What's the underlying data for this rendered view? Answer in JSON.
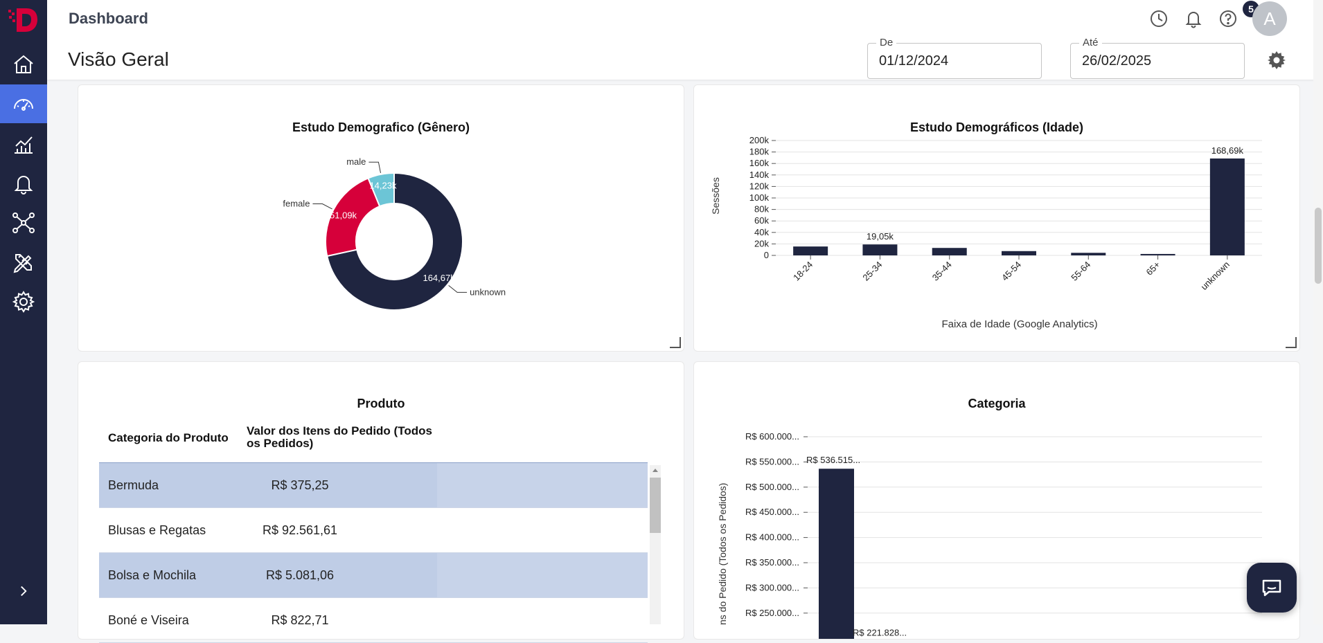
{
  "header": {
    "breadcrumb": "Dashboard",
    "page_title": "Visão Geral",
    "notification_count": "5",
    "avatar_initial": "A"
  },
  "date_range": {
    "from_label": "De",
    "from_value": "01/12/2024",
    "to_label": "Até",
    "to_value": "26/02/2025"
  },
  "colors": {
    "navy": "#1f2540",
    "red": "#d6003a",
    "teal": "#6cc5d6",
    "accent": "#4a6fe3"
  },
  "sidebar": {
    "items": [
      {
        "icon": "home-icon"
      },
      {
        "icon": "dashboard-gauge-icon",
        "active": true
      },
      {
        "icon": "analytics-chart-icon"
      },
      {
        "icon": "bell-icon"
      },
      {
        "icon": "network-icon"
      },
      {
        "icon": "design-tools-icon"
      },
      {
        "icon": "gear-icon"
      }
    ],
    "expand_icon": "chevron-right-icon"
  },
  "chart_data": [
    {
      "type": "pie",
      "title": "Estudo Demografico (Gênero)",
      "categories": [
        "unknown",
        "female",
        "male"
      ],
      "values": [
        164670,
        51090,
        14230
      ],
      "data_labels": [
        "164,67k",
        "51,09k",
        "14,23k"
      ]
    },
    {
      "type": "bar",
      "title": "Estudo Demográficos (Idade)",
      "xlabel": "Faixa de Idade (Google Analytics)",
      "ylabel": "Sessões",
      "categories": [
        "18-24",
        "25-34",
        "35-44",
        "45-54",
        "55-64",
        "65+",
        "unknown"
      ],
      "values": [
        15500,
        19050,
        13000,
        7500,
        4500,
        2500,
        168690
      ],
      "data_labels": [
        {
          "index": 1,
          "text": "19,05k"
        },
        {
          "index": 6,
          "text": "168,69k"
        }
      ],
      "ylim": [
        0,
        200000
      ],
      "yticks": [
        {
          "v": 200000,
          "label": "200k"
        },
        {
          "v": 180000,
          "label": "180k"
        },
        {
          "v": 160000,
          "label": "160k"
        },
        {
          "v": 140000,
          "label": "140k"
        },
        {
          "v": 120000,
          "label": "120k"
        },
        {
          "v": 100000,
          "label": "100k"
        },
        {
          "v": 80000,
          "label": "80k"
        },
        {
          "v": 60000,
          "label": "60k"
        },
        {
          "v": 40000,
          "label": "40k"
        },
        {
          "v": 20000,
          "label": "20k"
        },
        {
          "v": 0,
          "label": "0"
        }
      ]
    },
    {
      "type": "table",
      "title": "Produto",
      "columns": [
        "Categoria do Produto",
        "Valor dos Itens do Pedido (Todos os Pedidos)"
      ],
      "rows": [
        [
          "Bermuda",
          "R$ 375,25"
        ],
        [
          "Blusas e Regatas",
          "R$ 92.561,61"
        ],
        [
          "Bolsa e Mochila",
          "R$ 5.081,06"
        ],
        [
          "Boné e Viseira",
          "R$ 822,71"
        ]
      ]
    },
    {
      "type": "bar",
      "title": "Categoria",
      "ylabel": "ns do Pedido (Todos os Pedidos)",
      "values": [
        536515,
        221828
      ],
      "data_labels": [
        "R$ 536.515...",
        "R$ 221.828..."
      ],
      "ylim": [
        225000,
        600000
      ],
      "yticks": [
        {
          "v": 600000,
          "label": "R$ 600.000..."
        },
        {
          "v": 550000,
          "label": "R$ 550.000..."
        },
        {
          "v": 500000,
          "label": "R$ 500.000..."
        },
        {
          "v": 450000,
          "label": "R$ 450.000..."
        },
        {
          "v": 400000,
          "label": "R$ 400.000..."
        },
        {
          "v": 350000,
          "label": "R$ 350.000..."
        },
        {
          "v": 300000,
          "label": "R$ 300.000..."
        },
        {
          "v": 250000,
          "label": "R$ 250.000..."
        }
      ]
    }
  ]
}
